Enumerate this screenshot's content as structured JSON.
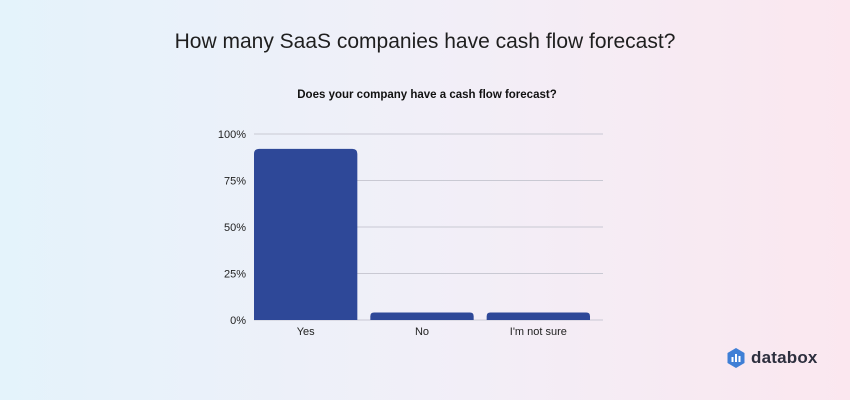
{
  "header": {
    "title": "How many SaaS companies have cash flow forecast?"
  },
  "chart_data": {
    "type": "bar",
    "title": "Does your company have a cash flow forecast?",
    "categories": [
      "Yes",
      "No",
      "I'm not sure"
    ],
    "values": [
      92,
      4,
      4
    ],
    "ylim": [
      0,
      100
    ],
    "yticks": [
      0,
      25,
      50,
      75,
      100
    ],
    "ytick_labels": [
      "0%",
      "25%",
      "50%",
      "75%",
      "100%"
    ],
    "xlabel": "",
    "ylabel": "",
    "grid": true,
    "bar_color": "#2e4898",
    "gridline_color": "#c9c9d3"
  },
  "brand": {
    "name": "databox",
    "logo_color": "#3f7fd6"
  }
}
